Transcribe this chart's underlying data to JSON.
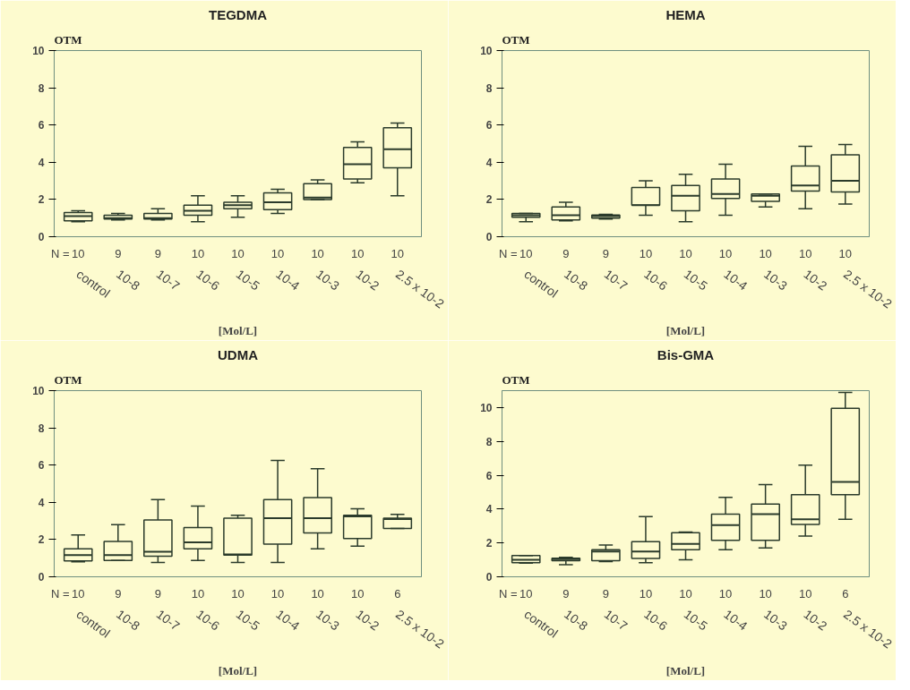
{
  "chart_data": [
    {
      "type": "box",
      "title": "TEGDMA",
      "ylabel": "OTM",
      "xlabel": "[Mol/L]",
      "categories": [
        "control",
        "10-8",
        "10-7",
        "10-6",
        "10-5",
        "10-4",
        "10-3",
        "10-2",
        "2.5 x 10-2"
      ],
      "ylim": [
        0,
        10
      ],
      "yticks": [
        0,
        2,
        4,
        6,
        8,
        10
      ],
      "grid": false,
      "series": [
        {
          "color": "#2b3b2b",
          "boxes": [
            {
              "low": 0.8,
              "q1": 0.85,
              "median": 1.1,
              "q3": 1.3,
              "high": 1.4
            },
            {
              "low": 0.9,
              "q1": 0.95,
              "median": 1.0,
              "q3": 1.15,
              "high": 1.25
            },
            {
              "low": 0.9,
              "q1": 0.95,
              "median": 1.0,
              "q3": 1.25,
              "high": 1.5
            },
            {
              "low": 0.8,
              "q1": 1.15,
              "median": 1.4,
              "q3": 1.7,
              "high": 2.2
            },
            {
              "low": 1.05,
              "q1": 1.5,
              "median": 1.7,
              "q3": 1.85,
              "high": 2.2
            },
            {
              "low": 1.25,
              "q1": 1.45,
              "median": 1.85,
              "q3": 2.35,
              "high": 2.55
            },
            {
              "low": 2.0,
              "q1": 2.0,
              "median": 2.1,
              "q3": 2.85,
              "high": 3.05
            },
            {
              "low": 2.9,
              "q1": 3.1,
              "median": 3.9,
              "q3": 4.8,
              "high": 5.1
            },
            {
              "low": 2.2,
              "q1": 3.7,
              "median": 4.7,
              "q3": 5.85,
              "high": 6.1
            }
          ]
        }
      ],
      "annotations": [
        "N =",
        "10",
        "9",
        "9",
        "10",
        "10",
        "10",
        "10",
        "10",
        "10"
      ]
    },
    {
      "type": "box",
      "title": "HEMA",
      "ylabel": "OTM",
      "xlabel": "[Mol/L]",
      "categories": [
        "control",
        "10-8",
        "10-7",
        "10-6",
        "10-5",
        "10-4",
        "10-3",
        "10-2",
        "2.5 x 10-2"
      ],
      "ylim": [
        0,
        10
      ],
      "yticks": [
        0,
        2,
        4,
        6,
        8,
        10
      ],
      "grid": false,
      "series": [
        {
          "color": "#2b3b2b",
          "boxes": [
            {
              "low": 0.8,
              "q1": 1.05,
              "median": 1.15,
              "q3": 1.25,
              "high": 1.25
            },
            {
              "low": 0.85,
              "q1": 0.9,
              "median": 1.15,
              "q3": 1.6,
              "high": 1.85
            },
            {
              "low": 0.95,
              "q1": 1.0,
              "median": 1.1,
              "q3": 1.17,
              "high": 1.2
            },
            {
              "low": 1.15,
              "q1": 1.7,
              "median": 1.7,
              "q3": 2.65,
              "high": 3.0
            },
            {
              "low": 0.8,
              "q1": 1.4,
              "median": 2.2,
              "q3": 2.75,
              "high": 3.35
            },
            {
              "low": 1.15,
              "q1": 2.05,
              "median": 2.3,
              "q3": 3.1,
              "high": 3.9
            },
            {
              "low": 1.6,
              "q1": 1.9,
              "median": 2.2,
              "q3": 2.3,
              "high": 2.3
            },
            {
              "low": 1.5,
              "q1": 2.45,
              "median": 2.75,
              "q3": 3.8,
              "high": 4.85
            },
            {
              "low": 1.75,
              "q1": 2.4,
              "median": 3.0,
              "q3": 4.4,
              "high": 4.95
            }
          ]
        }
      ],
      "annotations": [
        "N =",
        "10",
        "9",
        "9",
        "10",
        "10",
        "10",
        "10",
        "10",
        "10"
      ]
    },
    {
      "type": "box",
      "title": "UDMA",
      "ylabel": "OTM",
      "xlabel": "[Mol/L]",
      "categories": [
        "control",
        "10-8",
        "10-7",
        "10-6",
        "10-5",
        "10-4",
        "10-3",
        "10-2",
        "2.5 x 10-2"
      ],
      "ylim": [
        0,
        10
      ],
      "yticks": [
        0,
        2,
        4,
        6,
        8,
        10
      ],
      "grid": false,
      "series": [
        {
          "color": "#2b3b2b",
          "boxes": [
            {
              "low": 0.8,
              "q1": 0.85,
              "median": 1.17,
              "q3": 1.5,
              "high": 2.25
            },
            {
              "low": 0.88,
              "q1": 0.88,
              "median": 1.17,
              "q3": 1.9,
              "high": 2.8
            },
            {
              "low": 0.77,
              "q1": 1.1,
              "median": 1.35,
              "q3": 3.05,
              "high": 4.15
            },
            {
              "low": 0.88,
              "q1": 1.5,
              "median": 1.85,
              "q3": 2.65,
              "high": 3.8
            },
            {
              "low": 0.77,
              "q1": 1.17,
              "median": 1.2,
              "q3": 3.15,
              "high": 3.3
            },
            {
              "low": 0.77,
              "q1": 1.75,
              "median": 3.15,
              "q3": 4.15,
              "high": 6.25
            },
            {
              "low": 1.5,
              "q1": 2.35,
              "median": 3.15,
              "q3": 4.25,
              "high": 5.8
            },
            {
              "low": 1.65,
              "q1": 2.05,
              "median": 3.25,
              "q3": 3.3,
              "high": 3.65
            },
            {
              "low": 2.6,
              "q1": 2.6,
              "median": 3.1,
              "q3": 3.15,
              "high": 3.35
            }
          ]
        }
      ],
      "annotations": [
        "N =",
        "10",
        "9",
        "9",
        "10",
        "10",
        "10",
        "10",
        "10",
        "6"
      ]
    },
    {
      "type": "box",
      "title": "Bis-GMA",
      "ylabel": "OTM",
      "xlabel": "[Mol/L]",
      "categories": [
        "control",
        "10-8",
        "10-7",
        "10-6",
        "10-5",
        "10-4",
        "10-3",
        "10-2",
        "2.5 x 10-2"
      ],
      "ylim": [
        0,
        11
      ],
      "yticks": [
        0,
        2,
        4,
        6,
        8,
        10
      ],
      "grid": false,
      "series": [
        {
          "color": "#2b3b2b",
          "boxes": [
            {
              "low": 0.8,
              "q1": 0.83,
              "median": 1.0,
              "q3": 1.25,
              "high": 1.25
            },
            {
              "low": 0.72,
              "q1": 0.95,
              "median": 1.05,
              "q3": 1.1,
              "high": 1.15
            },
            {
              "low": 0.9,
              "q1": 0.95,
              "median": 1.5,
              "q3": 1.6,
              "high": 1.88
            },
            {
              "low": 0.83,
              "q1": 1.08,
              "median": 1.5,
              "q3": 2.08,
              "high": 3.55
            },
            {
              "low": 1.0,
              "q1": 1.6,
              "median": 1.95,
              "q3": 2.6,
              "high": 2.65
            },
            {
              "low": 1.6,
              "q1": 2.15,
              "median": 3.05,
              "q3": 3.7,
              "high": 4.7
            },
            {
              "low": 1.7,
              "q1": 2.15,
              "median": 3.7,
              "q3": 4.3,
              "high": 5.45
            },
            {
              "low": 2.4,
              "q1": 3.1,
              "median": 3.4,
              "q3": 4.85,
              "high": 6.6
            },
            {
              "low": 3.4,
              "q1": 4.85,
              "median": 5.6,
              "q3": 9.95,
              "high": 10.9
            }
          ]
        }
      ],
      "annotations": [
        "N =",
        "10",
        "9",
        "9",
        "10",
        "10",
        "10",
        "10",
        "10",
        "6"
      ]
    }
  ]
}
